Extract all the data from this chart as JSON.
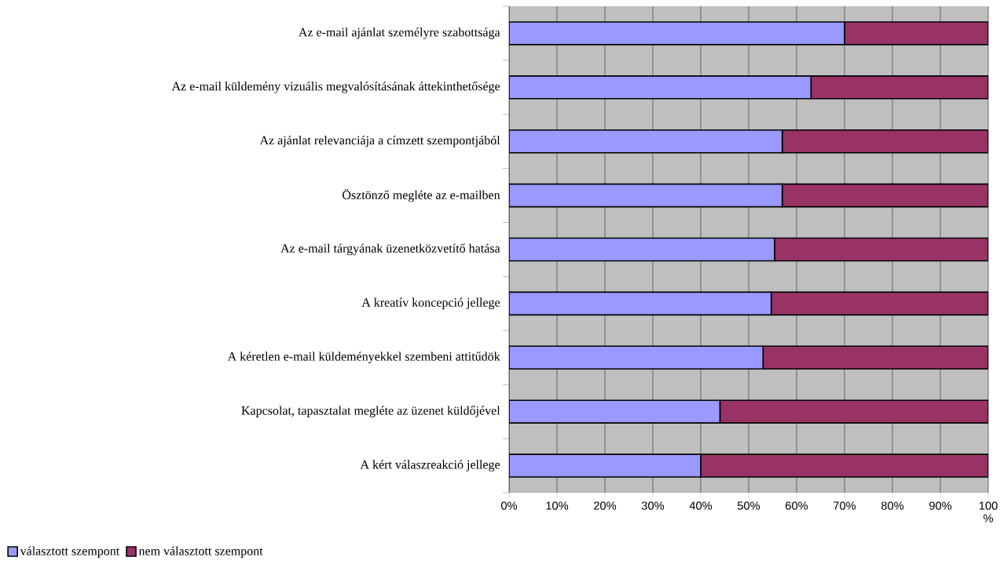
{
  "chart_data": {
    "type": "bar",
    "orientation": "horizontal",
    "stacked": true,
    "categories": [
      "Az e-mail ajánlat személyre szabottsága",
      "Az e-mail küldemény vizuális megvalósításának áttekinthetősége",
      "Az ajánlat relevanciája a címzett szempontjából",
      "Ösztönző megléte az e-mailben",
      "Az e-mail tárgyának üzenetközvetítő hatása",
      "A kreatív koncepció jellege",
      "A kéretlen e-mail küldeményekkel szembeni attitűdök",
      "Kapcsolat, tapasztalat megléte az üzenet küldőjével",
      "A kért válaszreakció jellege"
    ],
    "series": [
      {
        "name": "választott szempont",
        "color": "#9999ff",
        "values": [
          70,
          63,
          57,
          57,
          55.4,
          54.7,
          53,
          44,
          40
        ]
      },
      {
        "name": "nem választott szempont",
        "color": "#993366",
        "values": [
          30,
          37,
          43,
          43,
          44.6,
          45.3,
          47,
          56,
          60
        ]
      }
    ],
    "xlim": [
      0,
      100
    ],
    "xticks": [
      {
        "value": 0,
        "label": "0%"
      },
      {
        "value": 10,
        "label": "10%"
      },
      {
        "value": 20,
        "label": "20%"
      },
      {
        "value": 30,
        "label": "30%"
      },
      {
        "value": 40,
        "label": "40%"
      },
      {
        "value": 50,
        "label": "50%"
      },
      {
        "value": 60,
        "label": "60%"
      },
      {
        "value": 70,
        "label": "70%"
      },
      {
        "value": 80,
        "label": "80%"
      },
      {
        "value": 90,
        "label": "90%"
      },
      {
        "value": 100,
        "label": "100 %"
      }
    ],
    "grid": "x",
    "legend": "bottom left"
  }
}
